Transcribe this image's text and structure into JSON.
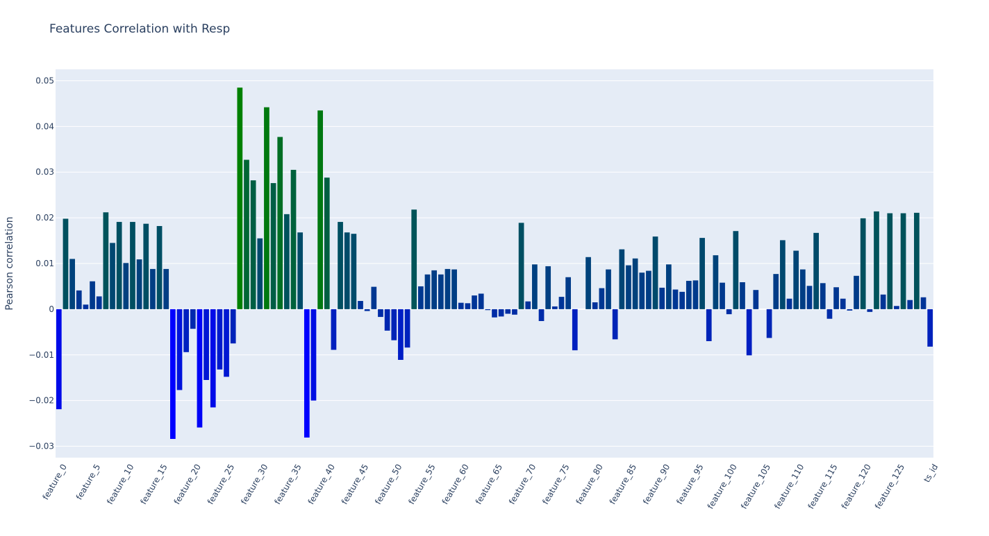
{
  "chart_data": {
    "type": "bar",
    "title": "Features Correlation with Resp",
    "xlabel": "",
    "ylabel": "Pearson correlation",
    "ylim": [
      -0.0325,
      0.0525
    ],
    "yticks": [
      0.05,
      0.04,
      0.03,
      0.02,
      0.01,
      0,
      -0.01,
      -0.02,
      -0.03
    ],
    "ytick_labels": [
      "0.05",
      "0.04",
      "0.03",
      "0.02",
      "0.01",
      "0",
      "−0.01",
      "−0.02",
      "−0.03"
    ],
    "xtick_labels": [
      "feature_0",
      "feature_5",
      "feature_10",
      "feature_15",
      "feature_20",
      "feature_25",
      "feature_30",
      "feature_35",
      "feature_40",
      "feature_45",
      "feature_50",
      "feature_55",
      "feature_60",
      "feature_65",
      "feature_70",
      "feature_75",
      "feature_80",
      "feature_85",
      "feature_90",
      "feature_95",
      "feature_100",
      "feature_105",
      "feature_110",
      "feature_115",
      "feature_120",
      "feature_125",
      "ts_id"
    ],
    "xtick_every": 5,
    "categories": [
      "feature_0",
      "feature_1",
      "feature_2",
      "feature_3",
      "feature_4",
      "feature_5",
      "feature_6",
      "feature_7",
      "feature_8",
      "feature_9",
      "feature_10",
      "feature_11",
      "feature_12",
      "feature_13",
      "feature_14",
      "feature_15",
      "feature_16",
      "feature_17",
      "feature_18",
      "feature_19",
      "feature_20",
      "feature_21",
      "feature_22",
      "feature_23",
      "feature_24",
      "feature_25",
      "feature_26",
      "feature_27",
      "feature_28",
      "feature_29",
      "feature_30",
      "feature_31",
      "feature_32",
      "feature_33",
      "feature_34",
      "feature_35",
      "feature_36",
      "feature_37",
      "feature_38",
      "feature_39",
      "feature_40",
      "feature_41",
      "feature_42",
      "feature_43",
      "feature_44",
      "feature_45",
      "feature_46",
      "feature_47",
      "feature_48",
      "feature_49",
      "feature_50",
      "feature_51",
      "feature_52",
      "feature_53",
      "feature_54",
      "feature_55",
      "feature_56",
      "feature_57",
      "feature_58",
      "feature_59",
      "feature_60",
      "feature_61",
      "feature_62",
      "feature_63",
      "feature_64",
      "feature_65",
      "feature_66",
      "feature_67",
      "feature_68",
      "feature_69",
      "feature_70",
      "feature_71",
      "feature_72",
      "feature_73",
      "feature_74",
      "feature_75",
      "feature_76",
      "feature_77",
      "feature_78",
      "feature_79",
      "feature_80",
      "feature_81",
      "feature_82",
      "feature_83",
      "feature_84",
      "feature_85",
      "feature_86",
      "feature_87",
      "feature_88",
      "feature_89",
      "feature_90",
      "feature_91",
      "feature_92",
      "feature_93",
      "feature_94",
      "feature_95",
      "feature_96",
      "feature_97",
      "feature_98",
      "feature_99",
      "feature_100",
      "feature_101",
      "feature_102",
      "feature_103",
      "feature_104",
      "feature_105",
      "feature_106",
      "feature_107",
      "feature_108",
      "feature_109",
      "feature_110",
      "feature_111",
      "feature_112",
      "feature_113",
      "feature_114",
      "feature_115",
      "feature_116",
      "feature_117",
      "feature_118",
      "feature_119",
      "feature_120",
      "feature_121",
      "feature_122",
      "feature_123",
      "feature_124",
      "feature_125",
      "feature_126",
      "feature_127",
      "feature_128",
      "feature_129",
      "ts_id"
    ],
    "values": [
      -0.0219,
      0.0198,
      0.011,
      0.0041,
      0.001,
      0.0061,
      0.0028,
      0.0212,
      0.0145,
      0.0191,
      0.0101,
      0.0191,
      0.0109,
      0.0187,
      0.0088,
      0.0182,
      0.0088,
      -0.0284,
      -0.0177,
      -0.0094,
      -0.0043,
      -0.0259,
      -0.0155,
      -0.0215,
      -0.0132,
      -0.0148,
      -0.0075,
      0.0485,
      0.0327,
      0.0282,
      0.0155,
      0.0442,
      0.0276,
      0.0377,
      0.0208,
      0.0305,
      0.0168,
      -0.0281,
      -0.02,
      0.0435,
      0.0288,
      -0.0089,
      0.0191,
      0.0168,
      0.0165,
      0.0018,
      -0.0004,
      0.0049,
      -0.0017,
      -0.0047,
      -0.0068,
      -0.0111,
      -0.0084,
      0.0218,
      0.005,
      0.0076,
      0.0085,
      0.0076,
      0.0088,
      0.0087,
      0.0014,
      0.0013,
      0.003,
      0.0034,
      -0.0002,
      -0.0018,
      -0.0016,
      -0.001,
      -0.0012,
      0.0189,
      0.0017,
      0.0098,
      -0.0026,
      0.0094,
      0.0006,
      0.0027,
      0.007,
      -0.009,
      0.0,
      0.0114,
      0.0015,
      0.0046,
      0.0087,
      -0.0066,
      0.0131,
      0.0096,
      0.0111,
      0.008,
      0.0084,
      0.0159,
      0.0047,
      0.0098,
      0.0043,
      0.0038,
      0.0062,
      0.0063,
      0.0156,
      -0.007,
      0.0118,
      0.0058,
      -0.0011,
      0.0171,
      0.0059,
      -0.0101,
      0.0042,
      0.0,
      -0.0063,
      0.0077,
      0.0151,
      0.0023,
      0.0128,
      0.0087,
      0.0051,
      0.0167,
      0.0057,
      -0.0021,
      0.0048,
      0.0023,
      -0.0003,
      0.0073,
      0.0199,
      -0.0006,
      0.0214,
      0.0032,
      0.021,
      0.0007,
      0.021,
      0.002,
      0.0211,
      0.0026,
      -0.0082
    ],
    "color_scale": [
      "#0000ff",
      "#008000"
    ],
    "color_range": [
      -0.0284,
      0.0485
    ],
    "grid": true,
    "background": "#e5ecf6",
    "grid_color": "#ffffff",
    "text_color": "#2a3f5f"
  }
}
